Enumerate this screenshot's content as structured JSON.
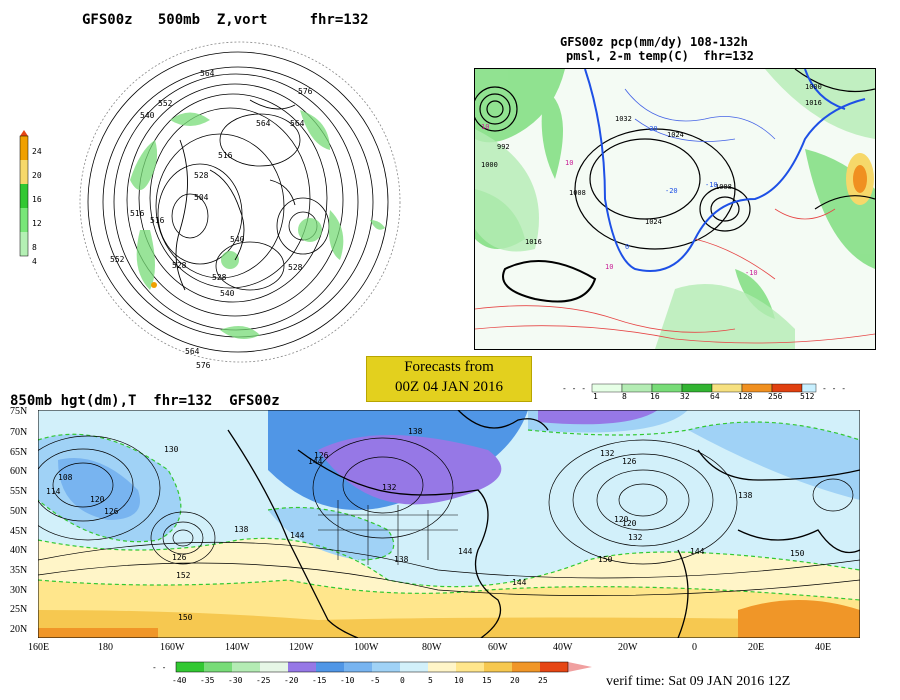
{
  "panel_top_left": {
    "title": "GFS00z   500mb  Z,vort     fhr=132",
    "colorbar": {
      "labels": [
        "24",
        "20",
        "16",
        "12",
        "8",
        "4"
      ],
      "colors": [
        "#f0a000",
        "#f6d86a",
        "#32c832",
        "#78e678",
        "#b4f0b4"
      ]
    },
    "contour_labels": [
      "564",
      "576",
      "552",
      "540",
      "564",
      "528",
      "516",
      "564",
      "504",
      "516",
      "540",
      "528",
      "552",
      "528",
      "540",
      "564",
      "576",
      "528",
      "516"
    ]
  },
  "panel_top_right": {
    "title_line1": "GFS00z pcp(mm/dy) 108-132h",
    "title_line2": "pmsl, 2-m temp(C)  fhr=132",
    "isobar_labels": [
      "1000",
      "1032",
      "1024",
      "1016",
      "1008",
      "1024",
      "1016",
      "1000",
      "1008",
      "1016",
      "992"
    ],
    "temp_labels": [
      "10",
      "10",
      "-30",
      "-20",
      "-10",
      "0",
      "10",
      "-10"
    ],
    "colorbar": {
      "labels": [
        "1",
        "8",
        "16",
        "32",
        "64",
        "128",
        "256",
        "512"
      ],
      "colors": [
        "#e6ffe6",
        "#b4ecb4",
        "#78dc78",
        "#32b432",
        "#f6e080",
        "#f09020",
        "#e04010",
        "#c8f0ff"
      ]
    }
  },
  "forecasts_badge": {
    "line1": "Forecasts from",
    "line2": "00Z 04 JAN 2016"
  },
  "panel_bottom": {
    "title": "850mb hgt(dm),T  fhr=132  GFS00z",
    "lat_labels": [
      "75N",
      "70N",
      "65N",
      "60N",
      "55N",
      "50N",
      "45N",
      "40N",
      "35N",
      "30N",
      "25N",
      "20N"
    ],
    "lon_labels": [
      "160E",
      "180",
      "160W",
      "140W",
      "120W",
      "100W",
      "80W",
      "60W",
      "40W",
      "20W",
      "0",
      "20E",
      "40E"
    ],
    "height_labels": [
      "108",
      "114",
      "120",
      "126",
      "130",
      "138",
      "144",
      "126",
      "132",
      "138",
      "144",
      "120",
      "126",
      "152",
      "138",
      "144",
      "150",
      "144",
      "132",
      "126",
      "132",
      "138",
      "120",
      "144",
      "150",
      "150"
    ],
    "colorbar": {
      "labels": [
        "-40",
        "-35",
        "-30",
        "-25",
        "-20",
        "-15",
        "-10",
        "-5",
        "0",
        "5",
        "10",
        "15",
        "20",
        "25"
      ],
      "colors": [
        "#32c832",
        "#78dc78",
        "#b4ecb4",
        "#e6f6e6",
        "#9678e6",
        "#5096e6",
        "#78b4f0",
        "#a0d2f6",
        "#d2f0fa",
        "#fff5c8",
        "#ffe68c",
        "#f6c850",
        "#f09628",
        "#e64614",
        "#f0a0a0"
      ]
    }
  },
  "verif_time": "verif time: Sat 09 JAN 2016 12Z"
}
